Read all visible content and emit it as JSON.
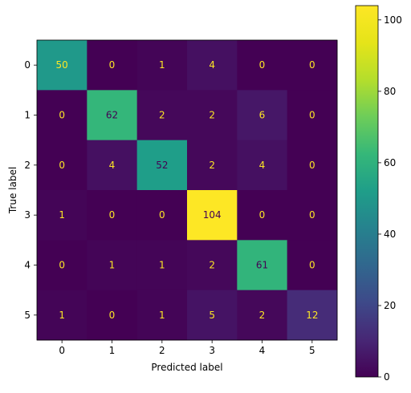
{
  "chart_data": {
    "type": "heatmap",
    "title": "",
    "xlabel": "Predicted label",
    "ylabel": "True label",
    "x_categories": [
      "0",
      "1",
      "2",
      "3",
      "4",
      "5"
    ],
    "y_categories": [
      "0",
      "1",
      "2",
      "3",
      "4",
      "5"
    ],
    "matrix": [
      [
        50,
        0,
        1,
        4,
        0,
        0
      ],
      [
        0,
        62,
        2,
        2,
        6,
        0
      ],
      [
        0,
        4,
        52,
        2,
        4,
        0
      ],
      [
        1,
        0,
        0,
        104,
        0,
        0
      ],
      [
        0,
        1,
        1,
        2,
        61,
        0
      ],
      [
        1,
        0,
        1,
        5,
        2,
        12
      ]
    ],
    "colormap": "viridis",
    "value_range": [
      0,
      104
    ],
    "colorbar_ticks": [
      "0",
      "20",
      "40",
      "60",
      "80",
      "100"
    ],
    "text_color_dark_cells": "#fde725",
    "text_color_bright_cells": "#440154",
    "grid": false
  }
}
